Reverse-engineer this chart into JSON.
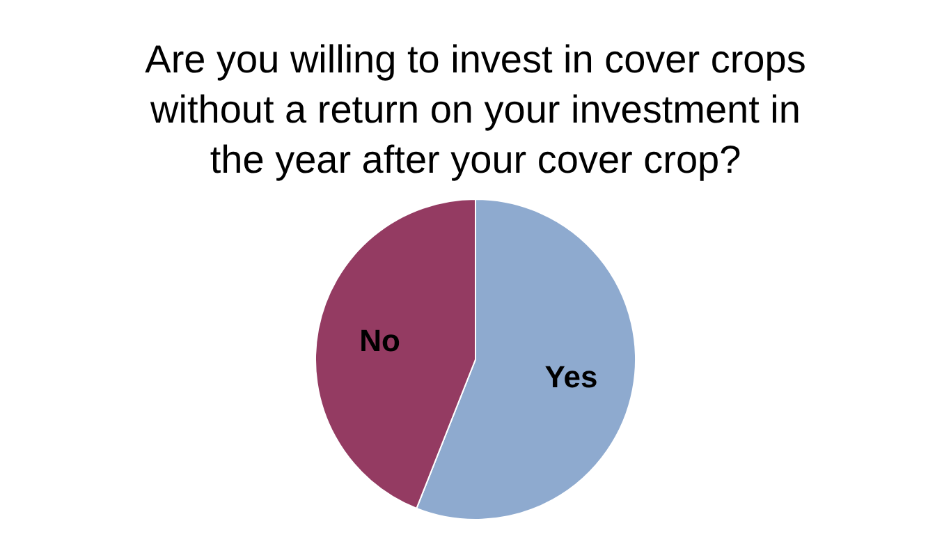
{
  "chart_data": {
    "type": "pie",
    "title": "Are you willing to invest in cover crops without a return on your investment in the year after your cover crop?",
    "categories": [
      "Yes",
      "No"
    ],
    "values": [
      56,
      44
    ],
    "colors": [
      "#8eaacf",
      "#943b62"
    ]
  }
}
